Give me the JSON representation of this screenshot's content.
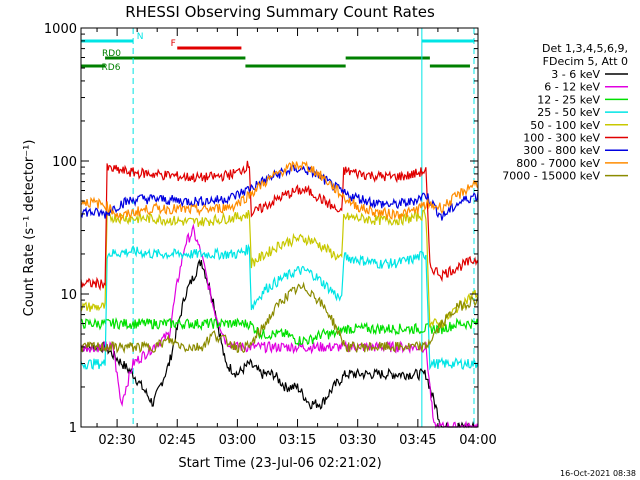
{
  "chart_data": {
    "type": "line",
    "title": "RHESSI Observing Summary Count Rates",
    "xlabel": "Start Time (23-Jul-06 02:21:02)",
    "ylabel": "Count Rate (s⁻¹ detector⁻¹)",
    "yscale": "log",
    "ylim": [
      1,
      1000
    ],
    "xlim_minutes": [
      0,
      99
    ],
    "x_ticks": [
      "02:30",
      "02:45",
      "03:00",
      "03:15",
      "03:30",
      "03:45",
      "04:00"
    ],
    "y_ticks": [
      "1",
      "10",
      "100",
      "1000"
    ],
    "legend_header": [
      "Det 1,3,4,5,6,9,",
      "FDecim 5, Att 0"
    ],
    "legend_position": "right",
    "timestamp": "16-Oct-2021 08:38",
    "flags": [
      {
        "label": "N",
        "color": "#00e5e5",
        "start_min": 0,
        "end_min": 13
      },
      {
        "label": "",
        "color": "#00e5e5",
        "start_min": 85,
        "end_min": 98
      },
      {
        "label": "F",
        "color": "#e00000",
        "start_min": 24,
        "end_min": 40
      },
      {
        "label": "RD0",
        "color": "#008000",
        "start_min": 6,
        "end_min": 41
      },
      {
        "label": "",
        "color": "#008000",
        "start_min": 41,
        "end_min": 66
      },
      {
        "label": "",
        "color": "#008000",
        "start_min": 66,
        "end_min": 87
      },
      {
        "label": "RD6",
        "color": "#008000",
        "start_min": 0,
        "end_min": 6
      },
      {
        "label": "",
        "color": "#008000",
        "start_min": 87,
        "end_min": 97
      }
    ],
    "series": [
      {
        "name": "3 - 6 keV",
        "color": "#000000",
        "x": [
          0,
          6,
          13,
          18,
          22,
          26,
          30,
          33,
          36,
          39,
          42,
          45,
          48,
          51,
          54,
          57,
          60,
          63,
          66,
          70,
          74,
          78,
          82,
          86,
          90,
          94,
          98
        ],
        "y": [
          4,
          4,
          2.5,
          1.5,
          3,
          10,
          18,
          9,
          3,
          2.5,
          3,
          2.5,
          2.5,
          2,
          2,
          1.5,
          1.5,
          2,
          2.5,
          2.5,
          2.5,
          2.5,
          2.5,
          2.5,
          1,
          1,
          1
        ]
      },
      {
        "name": "6 - 12 keV",
        "color": "#e000e0",
        "x": [
          0,
          6,
          8,
          10,
          13,
          18,
          22,
          24,
          26,
          28,
          30,
          33,
          36,
          39,
          42,
          45,
          48,
          51,
          54,
          57,
          60,
          63,
          66,
          70,
          74,
          78,
          82,
          86,
          88,
          90,
          94,
          98
        ],
        "y": [
          4,
          4,
          4,
          1.5,
          3,
          4,
          5,
          12,
          24,
          30,
          20,
          8,
          4.5,
          4,
          4,
          4,
          4,
          4,
          4,
          4,
          4,
          4,
          4,
          4,
          4,
          4,
          4,
          4,
          1,
          1,
          1,
          1
        ]
      },
      {
        "name": "12 - 25 keV",
        "color": "#00e000",
        "x": [
          0,
          6,
          13,
          18,
          22,
          26,
          30,
          33,
          36,
          39,
          42,
          45,
          48,
          51,
          54,
          57,
          60,
          63,
          66,
          70,
          74,
          78,
          82,
          86,
          90,
          94,
          98
        ],
        "y": [
          6,
          6,
          6,
          6,
          6,
          6,
          6,
          6,
          6,
          6,
          6,
          5,
          5,
          5,
          4.5,
          4.5,
          5,
          5,
          5.5,
          5.5,
          5.5,
          5.5,
          5.5,
          5.5,
          5.5,
          6,
          6
        ]
      },
      {
        "name": "25 - 50 keV",
        "color": "#00e5e5",
        "x": [
          0,
          6,
          6.5,
          13,
          18,
          22,
          26,
          30,
          33,
          36,
          39,
          42,
          42.5,
          46,
          50,
          54,
          56,
          58,
          62,
          65,
          65.5,
          70,
          74,
          78,
          82,
          86,
          87,
          90,
          94,
          98
        ],
        "y": [
          3,
          3,
          20,
          21,
          20,
          20,
          20,
          20,
          20,
          20,
          20,
          22,
          8,
          11,
          13,
          15,
          15,
          14,
          11,
          9,
          19,
          18,
          17,
          17,
          18,
          20,
          3,
          3,
          3,
          3
        ]
      },
      {
        "name": "50 - 100 keV",
        "color": "#c8c800",
        "x": [
          0,
          6,
          6.5,
          13,
          18,
          22,
          26,
          30,
          33,
          36,
          39,
          42,
          42.5,
          46,
          50,
          54,
          56,
          58,
          62,
          65,
          65.5,
          70,
          74,
          78,
          82,
          86,
          87,
          90,
          94,
          98
        ],
        "y": [
          8,
          8,
          38,
          37,
          37,
          36,
          35,
          35,
          36,
          37,
          38,
          40,
          17,
          20,
          24,
          26,
          26,
          25,
          21,
          18,
          38,
          37,
          36,
          36,
          37,
          40,
          6,
          6,
          8,
          10
        ]
      },
      {
        "name": "100 - 300 keV",
        "color": "#e00000",
        "x": [
          0,
          6,
          6.5,
          13,
          18,
          22,
          26,
          30,
          33,
          36,
          39,
          42,
          42.5,
          46,
          50,
          54,
          56,
          58,
          62,
          65,
          65.5,
          70,
          74,
          78,
          82,
          86,
          87,
          90,
          94,
          98
        ],
        "y": [
          12,
          12,
          88,
          82,
          80,
          78,
          76,
          75,
          76,
          78,
          82,
          95,
          40,
          46,
          54,
          60,
          60,
          57,
          47,
          40,
          85,
          80,
          77,
          76,
          78,
          85,
          16,
          14,
          16,
          18
        ]
      },
      {
        "name": "300 - 800 keV",
        "color": "#0000e0",
        "x": [
          0,
          6,
          10,
          14,
          18,
          22,
          26,
          30,
          34,
          38,
          42,
          46,
          50,
          54,
          56,
          58,
          62,
          66,
          70,
          74,
          78,
          82,
          86,
          90,
          94,
          98
        ],
        "y": [
          42,
          40,
          48,
          52,
          52,
          51,
          50,
          50,
          51,
          54,
          62,
          72,
          82,
          88,
          86,
          82,
          68,
          56,
          52,
          48,
          47,
          49,
          56,
          38,
          48,
          55
        ]
      },
      {
        "name": "800 - 7000 keV",
        "color": "#ff8c00",
        "x": [
          0,
          6,
          10,
          14,
          18,
          22,
          26,
          30,
          34,
          38,
          42,
          46,
          50,
          54,
          56,
          58,
          62,
          66,
          70,
          74,
          78,
          82,
          86,
          90,
          94,
          98
        ],
        "y": [
          50,
          47,
          38,
          42,
          44,
          44,
          43,
          43,
          44,
          46,
          56,
          70,
          84,
          94,
          92,
          86,
          68,
          52,
          44,
          41,
          40,
          41,
          47,
          45,
          55,
          68
        ]
      },
      {
        "name": "7000 - 15000 keV",
        "color": "#8b8b00",
        "x": [
          0,
          6,
          13,
          18,
          22,
          26,
          30,
          33,
          36,
          39,
          42,
          46,
          50,
          54,
          56,
          58,
          62,
          66,
          70,
          74,
          78,
          82,
          86,
          90,
          94,
          98
        ],
        "y": [
          4,
          4,
          4,
          4,
          4.5,
          4,
          4,
          5,
          4.5,
          4,
          4,
          6,
          9,
          11,
          11,
          10,
          7,
          4,
          4,
          4,
          4,
          4,
          4,
          6,
          8,
          9
        ]
      }
    ]
  }
}
